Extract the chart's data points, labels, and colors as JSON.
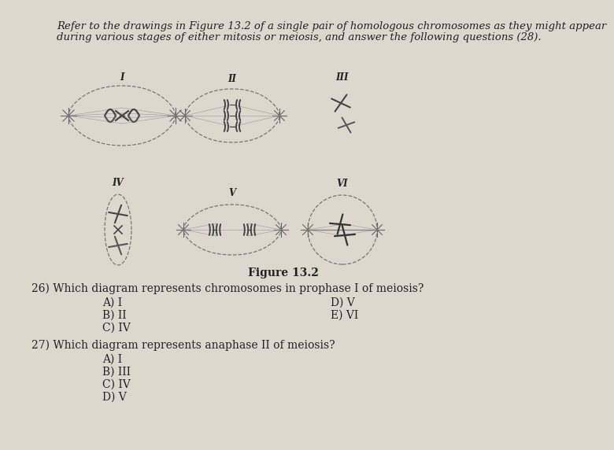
{
  "background_color": "#e8e3da",
  "intro_line1": "Refer to the drawings in Figure 13.2 of a single pair of homologous chromosomes as they might appear",
  "intro_line2": "during various stages of either mitosis or meiosis, and answer the following questions (28).",
  "figure_label": "Figure 13.2",
  "q26_text": "26) Which diagram represents chromosomes in prophase I of meiosis?",
  "q26_options_left": [
    "A) I",
    "B) II",
    "C) IV"
  ],
  "q26_options_right": [
    "D) V",
    "E) VI"
  ],
  "q27_text": "27) Which diagram represents anaphase II of meiosis?",
  "q27_options": [
    "A) I",
    "B) III",
    "C) IV",
    "D) V"
  ],
  "font_color": "#222222",
  "chr_color": "#444444",
  "spindle_color": "#666666",
  "page_bg": "#ddd8ce"
}
